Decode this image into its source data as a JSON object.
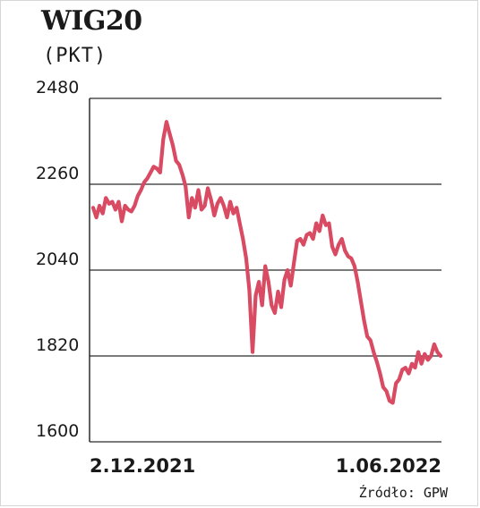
{
  "header": {
    "title": "WIG20",
    "unit": "(PKT)"
  },
  "footer": {
    "source": "Źródło: GPW"
  },
  "colors": {
    "line": "#d94a63",
    "grid": "#2b2b2b",
    "text": "#1a1a1a"
  },
  "chart_data": {
    "type": "line",
    "title": "WIG20",
    "ylabel": "(PKT)",
    "xlabel": "",
    "ylim": [
      1600,
      2480
    ],
    "yticks": [
      2480,
      2260,
      2040,
      1820,
      1600
    ],
    "xtick_labels": [
      "2.12.2021",
      "1.06.2022"
    ],
    "grid": "horizontal",
    "series": [
      {
        "values": [
          2200,
          2175,
          2205,
          2185,
          2225,
          2210,
          2215,
          2195,
          2215,
          2165,
          2205,
          2195,
          2190,
          2205,
          2230,
          2245,
          2265,
          2275,
          2290,
          2305,
          2300,
          2290,
          2375,
          2420,
          2390,
          2360,
          2320,
          2310,
          2285,
          2255,
          2175,
          2225,
          2200,
          2245,
          2195,
          2205,
          2250,
          2220,
          2180,
          2210,
          2225,
          2205,
          2175,
          2215,
          2185,
          2200,
          2160,
          2120,
          2070,
          1990,
          1830,
          1975,
          2010,
          1950,
          2050,
          2010,
          1950,
          1930,
          1985,
          1945,
          2015,
          2040,
          2000,
          2060,
          2115,
          2120,
          2105,
          2130,
          2135,
          2120,
          2160,
          2140,
          2180,
          2155,
          2160,
          2100,
          2080,
          2105,
          2120,
          2090,
          2075,
          2070,
          2050,
          2010,
          1960,
          1910,
          1870,
          1860,
          1830,
          1805,
          1775,
          1740,
          1730,
          1705,
          1700,
          1750,
          1760,
          1785,
          1790,
          1775,
          1800,
          1790,
          1830,
          1800,
          1825,
          1810,
          1820,
          1850,
          1830,
          1820
        ]
      }
    ]
  }
}
